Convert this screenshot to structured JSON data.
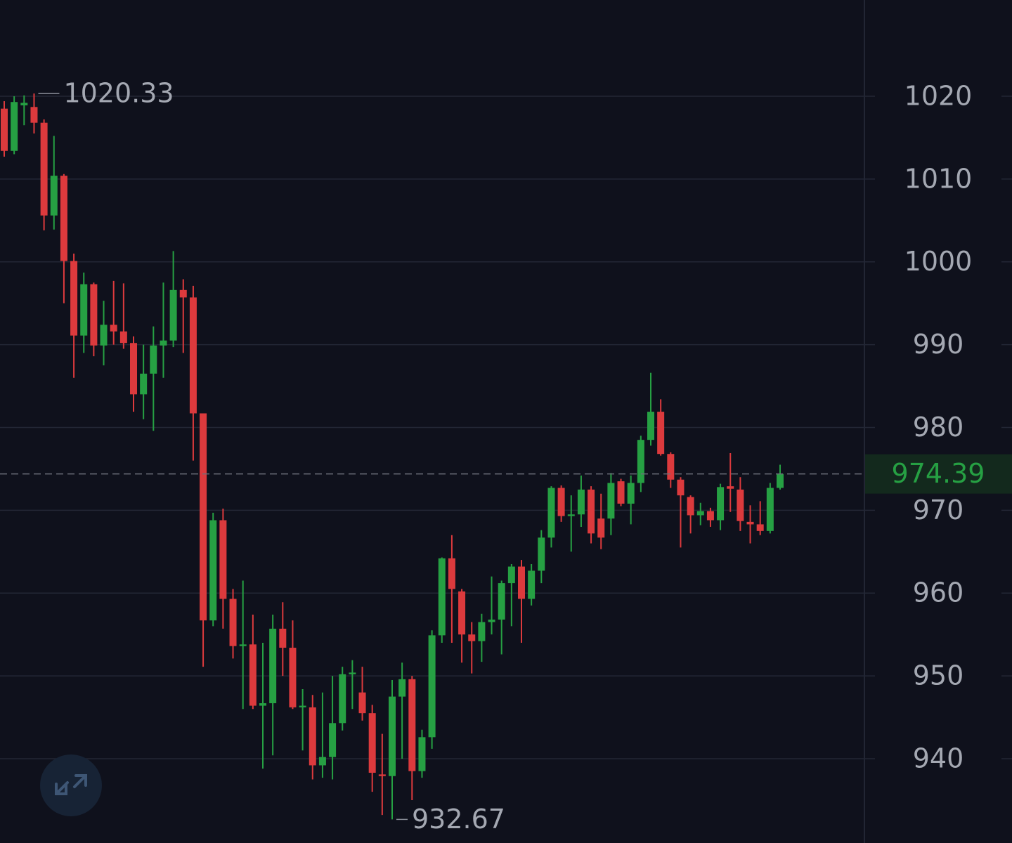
{
  "chart_data": {
    "type": "candlestick",
    "open": [
      1018.5,
      1013.4,
      1018.9,
      1018.7,
      1016.8,
      1005.6,
      1010.4,
      1000.1,
      991.1,
      997.3,
      989.9,
      992.4,
      991.6,
      990.2,
      984,
      986.5,
      989.9,
      990.5,
      996.6,
      995.7,
      981.7,
      956.7,
      968.8,
      959.3,
      953.6,
      953.8,
      946.4,
      946.7,
      955.7,
      953.4,
      946.2,
      946.2,
      939.2,
      940.2,
      944.3,
      950.2,
      948,
      945.5,
      938.1,
      937.9,
      947.5,
      949.6,
      938.5,
      942.6,
      954.9,
      964.2,
      960.2,
      955,
      954.2,
      956.5,
      956.8,
      961.2,
      963.2,
      959.3,
      962.7,
      966.7,
      972.7,
      969.3,
      969.5,
      972.5,
      969,
      969,
      973.5,
      970.8,
      973.3,
      978.5,
      981.9,
      976.8,
      973.7,
      971.6,
      969.4,
      969.9,
      968.8,
      972.9,
      972.5,
      968.6,
      968.3,
      967.5,
      972.7
    ],
    "high": [
      1019.4,
      1020,
      1020.1,
      1020.33,
      1017.2,
      1015.2,
      1010.6,
      1001,
      998.7,
      997.5,
      995.3,
      997.7,
      997.4,
      991,
      990,
      992.2,
      997.5,
      1001.3,
      997.9,
      997.1,
      981.7,
      969.7,
      970.2,
      960.5,
      961.5,
      957.4,
      954,
      957.4,
      958.9,
      956.7,
      948.4,
      947.7,
      948,
      950,
      951.1,
      951.9,
      951.1,
      946.5,
      943,
      949.5,
      951.6,
      950,
      943.5,
      955.5,
      964.3,
      967,
      960.5,
      956.5,
      957.5,
      962,
      961.5,
      963.5,
      964,
      963.5,
      967.6,
      972.9,
      973,
      971.8,
      974.2,
      972.9,
      972,
      974.5,
      973.8,
      974.2,
      979,
      986.6,
      983.4,
      977,
      974,
      971.8,
      970.9,
      970.3,
      973.2,
      976.9,
      974,
      970.6,
      971.1,
      973.3,
      975.5
    ],
    "low": [
      1012.7,
      1013,
      1016.5,
      1015.5,
      1003.8,
      1003.9,
      995,
      986,
      989,
      988.6,
      987.5,
      990,
      989.5,
      981.9,
      981,
      979.6,
      986,
      989.7,
      989,
      976,
      951.1,
      956,
      955.7,
      952.1,
      946,
      946,
      938.8,
      940.4,
      950,
      946,
      941,
      937.5,
      937.7,
      937.5,
      943.4,
      946,
      944.6,
      936,
      933.2,
      932.67,
      940,
      935,
      937.7,
      941.2,
      954,
      954,
      951.6,
      950.3,
      951.7,
      955,
      952.6,
      956,
      954,
      958.5,
      961.2,
      965.5,
      968.6,
      965,
      968,
      966,
      965.3,
      967,
      970.5,
      968.3,
      972.2,
      977.8,
      976.6,
      972.7,
      965.5,
      967.2,
      968.2,
      968,
      967.6,
      969.8,
      967.5,
      966,
      967,
      967.2,
      972.5
    ],
    "close": [
      1013.4,
      1019.3,
      1019.2,
      1016.8,
      1005.6,
      1010.4,
      1000.1,
      991.1,
      997.3,
      989.9,
      992.4,
      991.6,
      990.2,
      984,
      986.5,
      989.9,
      990.5,
      996.6,
      995.7,
      981.7,
      956.7,
      968.8,
      959.3,
      953.6,
      953.8,
      946.4,
      946.7,
      955.7,
      953.4,
      946.2,
      946.4,
      939.2,
      940.2,
      944.3,
      950.2,
      950.4,
      945.5,
      938.3,
      937.9,
      947.5,
      949.6,
      938.5,
      942.6,
      954.9,
      964.2,
      960.5,
      955,
      954.2,
      956.5,
      956.8,
      961.2,
      963.2,
      959.3,
      962.7,
      966.7,
      972.7,
      969.3,
      969.5,
      972.5,
      967.2,
      966.7,
      973.3,
      970.8,
      973.3,
      978.5,
      981.9,
      976.8,
      973.7,
      971.8,
      969.4,
      969.9,
      968.8,
      972.8,
      972.6,
      968.7,
      968.3,
      967.5,
      972.7,
      974.39
    ],
    "up_color": "#26a043",
    "down_color": "#dc3a3d",
    "ylim": [
      929.82,
      1031.62
    ],
    "yticks": [
      940,
      950,
      960,
      970,
      980,
      990,
      1000,
      1010,
      1020
    ],
    "grid": true
  }
}
